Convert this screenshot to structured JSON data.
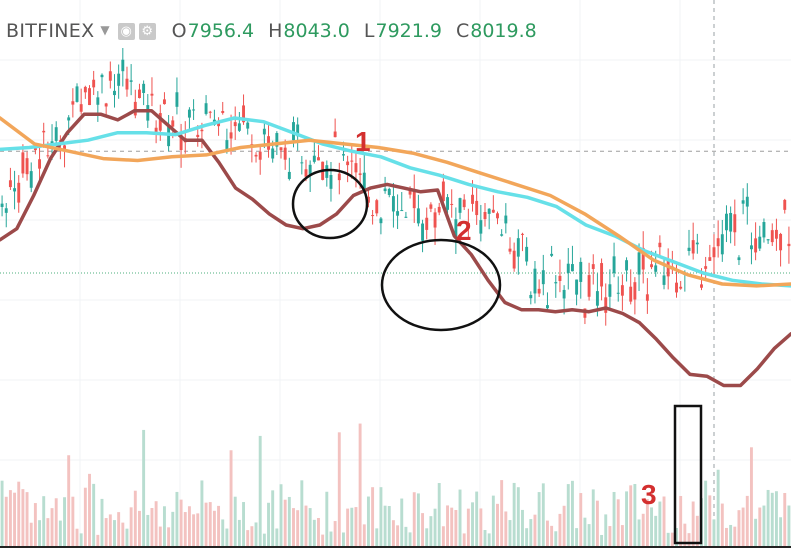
{
  "legend": {
    "exchange": "BITFINEX",
    "open_label": "O",
    "open": "7956.4",
    "high_label": "H",
    "high": "8043.0",
    "low_label": "L",
    "low": "7921.9",
    "close_label": "C",
    "close": "8019.8",
    "settings_icon": "gear-icon",
    "visibility_icon": "eye-icon"
  },
  "colors": {
    "up": "#26a69a",
    "down": "#ef5350",
    "ma_fast": "#9c4a4a",
    "ma_mid": "#66e0e8",
    "ma_slow": "#f2a65a",
    "annotation_text": "#d32f2f"
  },
  "annotations": [
    {
      "type": "text",
      "text": "1"
    },
    {
      "type": "text",
      "text": "2"
    },
    {
      "type": "text",
      "text": "3"
    }
  ],
  "chart_data": {
    "type": "candlestick",
    "title": "",
    "series": [
      {
        "name": "",
        "kind": "ma",
        "color": "#9c4a4a",
        "values": [
          7570,
          7600,
          7690,
          7790,
          7860,
          7910,
          7910,
          7895,
          7920,
          7920,
          7880,
          7840,
          7840,
          7780,
          7710,
          7680,
          7640,
          7610,
          7600,
          7610,
          7640,
          7690,
          7710,
          7720,
          7710,
          7700,
          7705,
          7580,
          7530,
          7460,
          7400,
          7380,
          7380,
          7375,
          7380,
          7375,
          7385,
          7370,
          7345,
          7300,
          7250,
          7205,
          7200,
          7175,
          7175,
          7220,
          7275,
          7315
        ]
      },
      {
        "name": "",
        "kind": "ma",
        "color": "#66e0e8",
        "values": [
          7815,
          7820,
          7830,
          7840,
          7860,
          7860,
          7855,
          7880,
          7900,
          7890,
          7860,
          7830,
          7810,
          7795,
          7765,
          7745,
          7720,
          7700,
          7685,
          7660,
          7610,
          7580,
          7540,
          7510,
          7480,
          7460,
          7450,
          7445
        ]
      },
      {
        "name": "",
        "kind": "ma",
        "color": "#f2a65a",
        "values": [
          7900,
          7830,
          7810,
          7790,
          7785,
          7795,
          7800,
          7820,
          7830,
          7840,
          7830,
          7820,
          7805,
          7780,
          7750,
          7720,
          7690,
          7640,
          7580,
          7515,
          7475,
          7450,
          7445,
          7450
        ]
      },
      {
        "name": "",
        "kind": "candles_up",
        "color": "#26a69a",
        "values": [
          7700,
          7790,
          7850,
          8000,
          8020,
          7950,
          7900,
          7880,
          7920,
          7900,
          7810,
          7850,
          7790,
          7700,
          7640,
          7640,
          7650,
          7660,
          7620,
          7460,
          7500,
          7420,
          7480,
          7480,
          7540,
          7560,
          7640,
          7660,
          7650
        ]
      },
      {
        "name": "",
        "kind": "candles_down",
        "color": "#ef5350",
        "values": [
          8120,
          7840,
          7970,
          8080,
          7980,
          7860,
          7810,
          7610,
          7550,
          7570,
          7440,
          7320,
          7190,
          7220,
          7200,
          7200,
          7240,
          7350
        ]
      }
    ],
    "ylim": [
      7000,
      8220
    ],
    "horizontal_lines": [
      7810,
      7480
    ],
    "crosshair": true,
    "volume": true,
    "grid": true
  }
}
